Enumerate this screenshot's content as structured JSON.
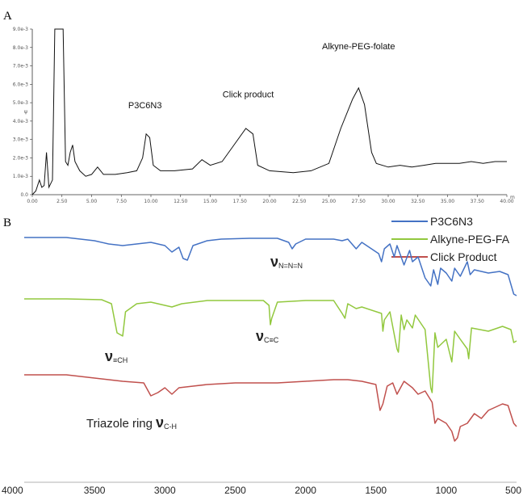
{
  "panels": {
    "a_label": "A",
    "b_label": "B"
  },
  "chart_data": [
    {
      "type": "line",
      "panel": "A",
      "xlim": [
        0,
        40
      ],
      "ylim": [
        0,
        0.009
      ],
      "x_ticks": [
        "0.00",
        "2.50",
        "5.00",
        "7.50",
        "10.00",
        "12.50",
        "15.00",
        "17.50",
        "20.00",
        "22.50",
        "25.00",
        "27.50",
        "30.00",
        "32.50",
        "35.00",
        "37.50",
        "40.00"
      ],
      "x_tick_values": [
        0,
        2.5,
        5,
        7.5,
        10,
        12.5,
        15,
        17.5,
        20,
        22.5,
        25,
        27.5,
        30,
        32.5,
        35,
        37.5,
        40
      ],
      "x_unit_partial": "m",
      "y_ticks": [
        "0.0",
        "1.0e-3",
        "2.0e-3",
        "3.0e-3",
        "4.0e-3",
        "5.0e-3",
        "6.0e-3",
        "7.0e-3",
        "8.0e-3",
        "9.0e-3"
      ],
      "y_tick_values": [
        0,
        0.001,
        0.002,
        0.003,
        0.004,
        0.005,
        0.006,
        0.007,
        0.008,
        0.009
      ],
      "ylabel": "ψ",
      "annotations": [
        {
          "text": "P3C6N3",
          "x": 9.5,
          "y": 0.0047
        },
        {
          "text": "Click product",
          "x": 18.2,
          "y": 0.0053
        },
        {
          "text": "Alkyne-PEG-folate",
          "x": 27.5,
          "y": 0.0079
        }
      ],
      "color": "#111111",
      "points": [
        [
          0.0,
          0.0
        ],
        [
          0.3,
          0.0002
        ],
        [
          0.6,
          0.0008
        ],
        [
          0.8,
          0.0004
        ],
        [
          1.0,
          0.0005
        ],
        [
          1.2,
          0.0023
        ],
        [
          1.4,
          0.0004
        ],
        [
          1.7,
          0.0008
        ],
        [
          1.9,
          0.0095
        ],
        [
          2.1,
          0.0095
        ],
        [
          2.4,
          0.0095
        ],
        [
          2.6,
          0.0095
        ],
        [
          2.8,
          0.0018
        ],
        [
          3.0,
          0.0016
        ],
        [
          3.2,
          0.0023
        ],
        [
          3.4,
          0.0027
        ],
        [
          3.6,
          0.0018
        ],
        [
          4.0,
          0.0013
        ],
        [
          4.5,
          0.001
        ],
        [
          5.0,
          0.0011
        ],
        [
          5.5,
          0.0015
        ],
        [
          6.0,
          0.0011
        ],
        [
          7.0,
          0.0011
        ],
        [
          8.0,
          0.0012
        ],
        [
          8.8,
          0.0013
        ],
        [
          9.3,
          0.002
        ],
        [
          9.6,
          0.0033
        ],
        [
          9.9,
          0.0031
        ],
        [
          10.2,
          0.0016
        ],
        [
          10.8,
          0.0013
        ],
        [
          12.0,
          0.0013
        ],
        [
          13.5,
          0.0014
        ],
        [
          14.3,
          0.0019
        ],
        [
          15.0,
          0.0016
        ],
        [
          16.0,
          0.0018
        ],
        [
          17.0,
          0.0027
        ],
        [
          18.0,
          0.0036
        ],
        [
          18.6,
          0.0033
        ],
        [
          19.0,
          0.0016
        ],
        [
          20.0,
          0.0013
        ],
        [
          22.0,
          0.0012
        ],
        [
          23.5,
          0.0013
        ],
        [
          25.0,
          0.0017
        ],
        [
          26.0,
          0.0036
        ],
        [
          27.0,
          0.0052
        ],
        [
          27.5,
          0.0058
        ],
        [
          28.0,
          0.0049
        ],
        [
          28.6,
          0.0023
        ],
        [
          29.0,
          0.0017
        ],
        [
          30.0,
          0.0015
        ],
        [
          31.0,
          0.0016
        ],
        [
          32.0,
          0.0015
        ],
        [
          33.0,
          0.0016
        ],
        [
          34.0,
          0.0017
        ],
        [
          35.0,
          0.0017
        ],
        [
          36.0,
          0.0017
        ],
        [
          37.0,
          0.0018
        ],
        [
          38.0,
          0.0017
        ],
        [
          39.0,
          0.0018
        ],
        [
          40.0,
          0.0018
        ]
      ]
    },
    {
      "type": "line",
      "panel": "B",
      "xlim": [
        4000,
        500
      ],
      "x_reversed": true,
      "x_ticks": [
        "4000",
        "3500",
        "3000",
        "2500",
        "2000",
        "1500",
        "1000",
        "500"
      ],
      "x_tick_values": [
        4000,
        3500,
        3000,
        2500,
        2000,
        1500,
        1000,
        500
      ],
      "legend_position": "top-right",
      "series": [
        {
          "name": "P3C6N3",
          "color": "#4472C4",
          "offset": 0,
          "points": [
            [
              4000,
              0
            ],
            [
              3700,
              0
            ],
            [
              3500,
              4
            ],
            [
              3400,
              8
            ],
            [
              3300,
              10
            ],
            [
              3200,
              8
            ],
            [
              3100,
              6
            ],
            [
              3000,
              10
            ],
            [
              2950,
              18
            ],
            [
              2900,
              12
            ],
            [
              2870,
              26
            ],
            [
              2840,
              28
            ],
            [
              2800,
              10
            ],
            [
              2700,
              4
            ],
            [
              2600,
              2
            ],
            [
              2400,
              1
            ],
            [
              2200,
              1
            ],
            [
              2120,
              6
            ],
            [
              2095,
              14
            ],
            [
              2070,
              8
            ],
            [
              2000,
              2
            ],
            [
              1800,
              2
            ],
            [
              1740,
              4
            ],
            [
              1700,
              2
            ],
            [
              1660,
              10
            ],
            [
              1640,
              14
            ],
            [
              1600,
              6
            ],
            [
              1480,
              20
            ],
            [
              1460,
              30
            ],
            [
              1440,
              14
            ],
            [
              1400,
              8
            ],
            [
              1370,
              24
            ],
            [
              1350,
              10
            ],
            [
              1300,
              34
            ],
            [
              1260,
              16
            ],
            [
              1240,
              30
            ],
            [
              1200,
              24
            ],
            [
              1150,
              50
            ],
            [
              1110,
              60
            ],
            [
              1090,
              40
            ],
            [
              1060,
              58
            ],
            [
              1040,
              38
            ],
            [
              1000,
              44
            ],
            [
              960,
              54
            ],
            [
              940,
              38
            ],
            [
              900,
              48
            ],
            [
              850,
              30
            ],
            [
              830,
              46
            ],
            [
              800,
              40
            ],
            [
              700,
              44
            ],
            [
              620,
              42
            ],
            [
              560,
              46
            ],
            [
              520,
              70
            ],
            [
              500,
              72
            ]
          ]
        },
        {
          "name": "Alkyne-PEG-FA",
          "color": "#92C83E",
          "offset": 76,
          "points": [
            [
              4000,
              0
            ],
            [
              3700,
              0
            ],
            [
              3450,
              1
            ],
            [
              3380,
              6
            ],
            [
              3340,
              42
            ],
            [
              3300,
              46
            ],
            [
              3280,
              16
            ],
            [
              3200,
              6
            ],
            [
              3100,
              4
            ],
            [
              3000,
              8
            ],
            [
              2950,
              10
            ],
            [
              2880,
              6
            ],
            [
              2700,
              2
            ],
            [
              2500,
              2
            ],
            [
              2300,
              2
            ],
            [
              2260,
              8
            ],
            [
              2250,
              32
            ],
            [
              2240,
              24
            ],
            [
              2200,
              4
            ],
            [
              2000,
              2
            ],
            [
              1800,
              2
            ],
            [
              1740,
              18
            ],
            [
              1720,
              24
            ],
            [
              1700,
              6
            ],
            [
              1640,
              12
            ],
            [
              1600,
              10
            ],
            [
              1460,
              18
            ],
            [
              1450,
              40
            ],
            [
              1440,
              26
            ],
            [
              1400,
              16
            ],
            [
              1350,
              62
            ],
            [
              1340,
              66
            ],
            [
              1320,
              20
            ],
            [
              1300,
              38
            ],
            [
              1280,
              26
            ],
            [
              1240,
              36
            ],
            [
              1220,
              20
            ],
            [
              1150,
              38
            ],
            [
              1110,
              110
            ],
            [
              1100,
              116
            ],
            [
              1080,
              42
            ],
            [
              1060,
              60
            ],
            [
              1000,
              50
            ],
            [
              960,
              78
            ],
            [
              940,
              40
            ],
            [
              900,
              50
            ],
            [
              850,
              62
            ],
            [
              840,
              74
            ],
            [
              820,
              36
            ],
            [
              700,
              40
            ],
            [
              600,
              34
            ],
            [
              540,
              38
            ],
            [
              520,
              54
            ],
            [
              500,
              52
            ]
          ]
        },
        {
          "name": "Click Product",
          "color": "#C0504D",
          "offset": 170,
          "points": [
            [
              4000,
              0
            ],
            [
              3700,
              0
            ],
            [
              3500,
              4
            ],
            [
              3400,
              6
            ],
            [
              3300,
              8
            ],
            [
              3150,
              10
            ],
            [
              3100,
              26
            ],
            [
              3050,
              22
            ],
            [
              3000,
              16
            ],
            [
              2950,
              24
            ],
            [
              2900,
              16
            ],
            [
              2800,
              14
            ],
            [
              2700,
              12
            ],
            [
              2500,
              10
            ],
            [
              2200,
              10
            ],
            [
              2000,
              8
            ],
            [
              1800,
              6
            ],
            [
              1700,
              6
            ],
            [
              1600,
              8
            ],
            [
              1500,
              12
            ],
            [
              1470,
              44
            ],
            [
              1450,
              36
            ],
            [
              1420,
              14
            ],
            [
              1380,
              10
            ],
            [
              1350,
              24
            ],
            [
              1300,
              8
            ],
            [
              1240,
              16
            ],
            [
              1200,
              24
            ],
            [
              1150,
              20
            ],
            [
              1100,
              34
            ],
            [
              1080,
              60
            ],
            [
              1060,
              54
            ],
            [
              1000,
              60
            ],
            [
              960,
              70
            ],
            [
              940,
              82
            ],
            [
              920,
              78
            ],
            [
              900,
              64
            ],
            [
              850,
              60
            ],
            [
              800,
              48
            ],
            [
              750,
              54
            ],
            [
              700,
              44
            ],
            [
              650,
              40
            ],
            [
              600,
              36
            ],
            [
              560,
              38
            ],
            [
              520,
              60
            ],
            [
              500,
              64
            ]
          ]
        }
      ],
      "annotations": [
        {
          "symbol": "ν",
          "subscript": "N=N=N",
          "x": 2070
        },
        {
          "symbol": "ν",
          "subscript": "≡CH",
          "x": 3500
        },
        {
          "symbol": "ν",
          "subscript": "C≡C",
          "x": 2330
        },
        {
          "text": "Triazole ring",
          "symbol": "ν",
          "subscript": "C-H",
          "x": 3600
        }
      ]
    }
  ]
}
